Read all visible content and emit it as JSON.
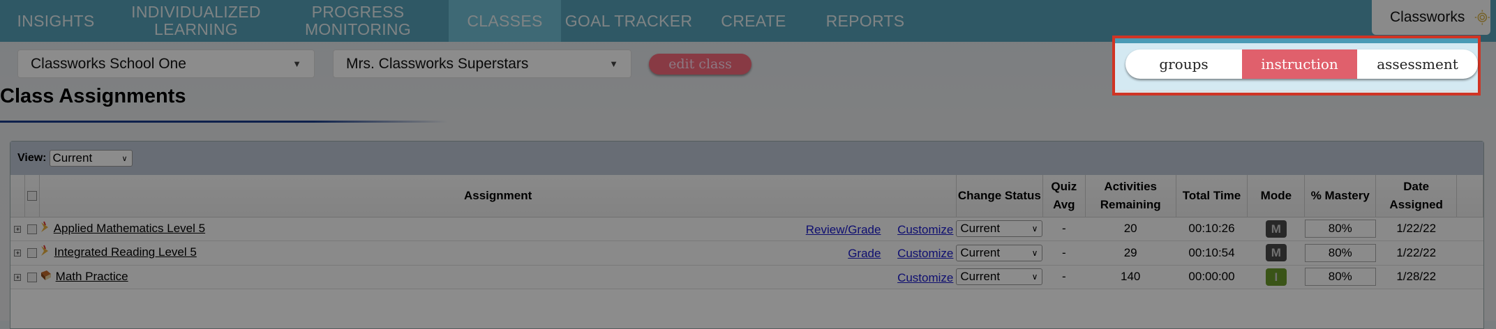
{
  "nav": {
    "items": [
      {
        "label": "INSIGHTS",
        "active": false
      },
      {
        "label": "INDIVIDUALIZED LEARNING",
        "active": false
      },
      {
        "label": "PROGRESS MONITORING",
        "active": false
      },
      {
        "label": "CLASSES",
        "active": true
      },
      {
        "label": "GOAL TRACKER",
        "active": false
      },
      {
        "label": "CREATE",
        "active": false
      },
      {
        "label": "REPORTS",
        "active": false
      }
    ],
    "brand": "Classworks",
    "logo_icon": "sun-spiral-icon"
  },
  "filters": {
    "school": "Classworks School One",
    "class": "Mrs. Classworks Superstars",
    "edit_label": "edit class"
  },
  "segmented": {
    "items": [
      "groups",
      "instruction",
      "assessment"
    ],
    "active": "instruction",
    "accent": "#e0606c"
  },
  "page_title": "Class Assignments",
  "table": {
    "view_label": "View:",
    "view_value": "Current",
    "headers": [
      "Assignment",
      "Change Status",
      "Quiz Avg",
      "Activities Remaining",
      "Total Time",
      "Mode",
      "% Mastery",
      "Date Assigned"
    ],
    "rows": [
      {
        "name": "Applied Mathematics Level 5",
        "icon": "learning-path-icon",
        "grade_link": "Review/Grade",
        "customize": "Customize",
        "status": "Current",
        "quiz_avg": "-",
        "remaining": "20",
        "time": "00:10:26",
        "mode": "M",
        "mode_color": "#4a4a4a",
        "mastery": "80%",
        "date": "1/22/22"
      },
      {
        "name": "Integrated Reading Level 5",
        "icon": "learning-path-icon",
        "grade_link": "Grade",
        "customize": "Customize",
        "status": "Current",
        "quiz_avg": "-",
        "remaining": "29",
        "time": "00:10:54",
        "mode": "M",
        "mode_color": "#4a4a4a",
        "mastery": "80%",
        "date": "1/22/22"
      },
      {
        "name": "Math Practice",
        "icon": "book-icon",
        "grade_link": "",
        "customize": "Customize",
        "status": "Current",
        "quiz_avg": "-",
        "remaining": "140",
        "time": "00:00:00",
        "mode": "I",
        "mode_color": "#6a9a2a",
        "mastery": "80%",
        "date": "1/28/22"
      }
    ]
  }
}
